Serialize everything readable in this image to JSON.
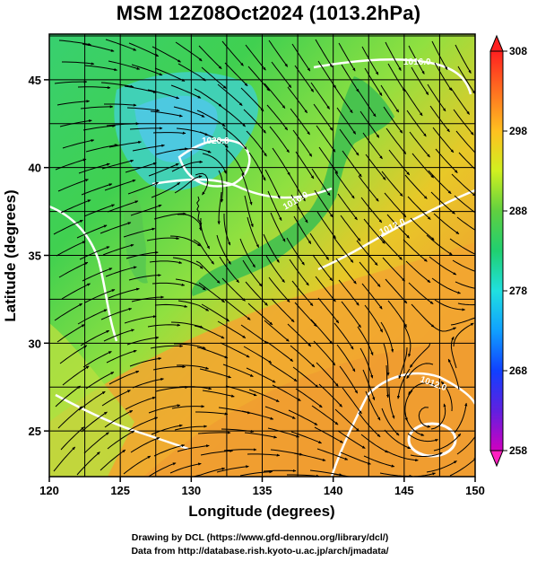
{
  "title": "MSM 12Z08Oct2024 (1013.2hPa)",
  "x_axis": {
    "label": "Longitude (degrees)",
    "ticks": [
      "120",
      "125",
      "130",
      "135",
      "140",
      "145",
      "150"
    ],
    "range": [
      120,
      150
    ]
  },
  "y_axis": {
    "label": "Latitude  (degrees)",
    "ticks": [
      "25",
      "30",
      "35",
      "40",
      "45"
    ],
    "range": [
      22.4,
      47.6
    ]
  },
  "colorbar": {
    "ticks": [
      "258",
      "268",
      "278",
      "288",
      "298",
      "308"
    ],
    "range": [
      258,
      308
    ],
    "colors": [
      "#d000c0",
      "#5020e0",
      "#1040ff",
      "#10a0ff",
      "#20e0e0",
      "#20d080",
      "#20c040",
      "#80e040",
      "#e0f020",
      "#ffd020",
      "#ffa020",
      "#ff6020",
      "#ff2020"
    ]
  },
  "contour_labels": [
    "1016.0",
    "1016.0",
    "1012.0",
    "1020.0",
    "1012.0"
  ],
  "credits": {
    "line1": "Drawing by DCL (https://www.gfd-dennou.org/library/dcl/)",
    "line2": "Data from http://database.rish.kyoto-u.ac.jp/arch/jmadata/"
  }
}
